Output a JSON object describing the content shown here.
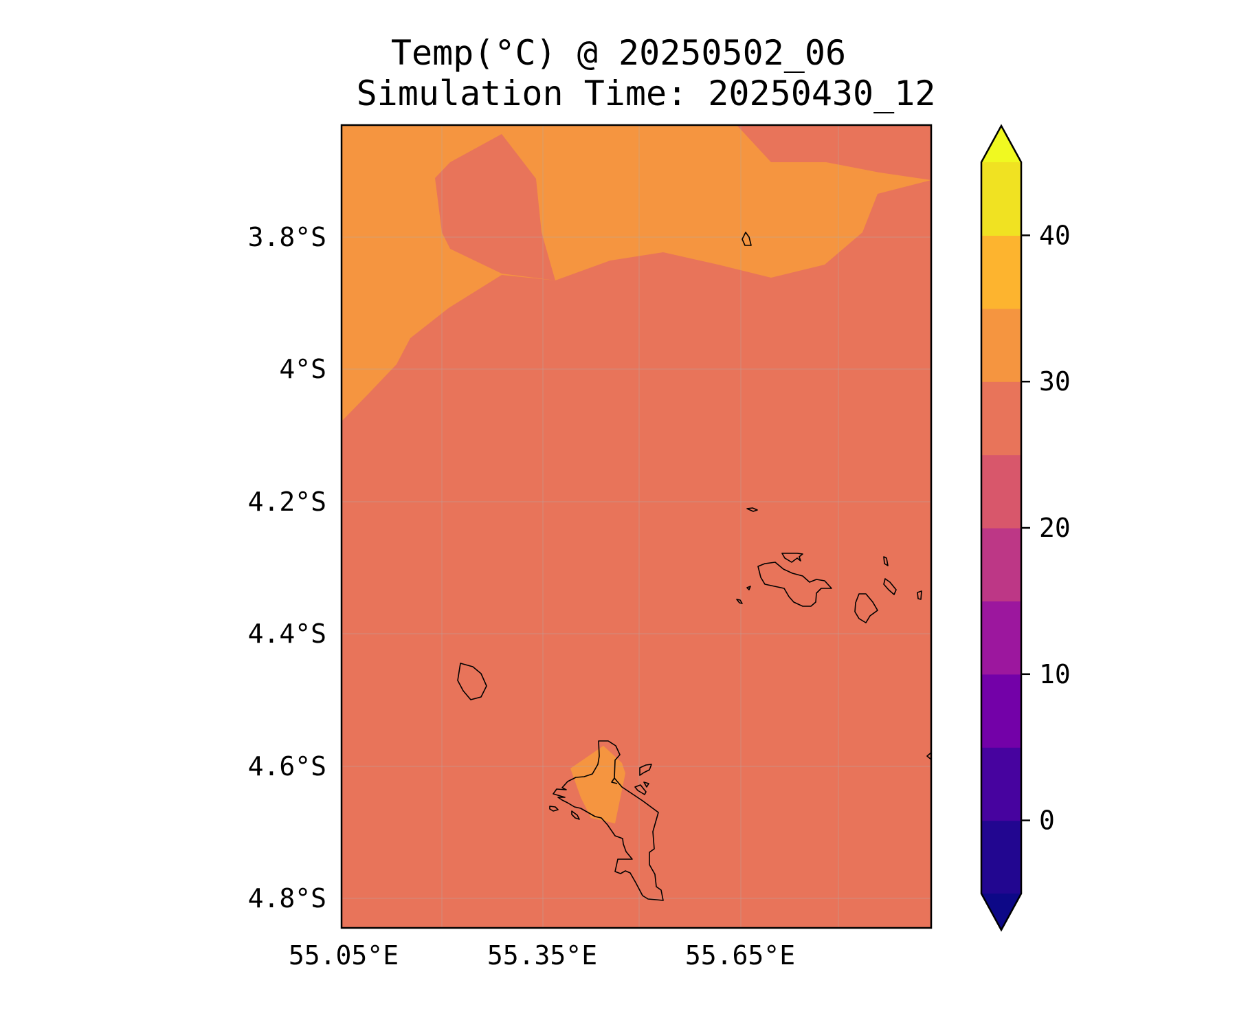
{
  "title": {
    "line1": "Temp(°C) @ 20250502_06",
    "line2": "Simulation Time: 20250430_12"
  },
  "map": {
    "lon_ticks": [
      "55.05°E",
      "55.35°E",
      "55.65°E"
    ],
    "lat_ticks": [
      "3.8°S",
      "4°S",
      "4.2°S",
      "4.4°S",
      "4.6°S",
      "4.8°S"
    ],
    "field_colors": {
      "band_25_30": "#e8745a",
      "band_30_35": "#f59540",
      "coastline": "#000000"
    }
  },
  "colorbar": {
    "tick_labels": [
      "40",
      "30",
      "20",
      "10",
      "0"
    ],
    "levels": [
      -5,
      0,
      5,
      10,
      15,
      20,
      25,
      30,
      35,
      40,
      45
    ],
    "under_color": "#0d0887",
    "over_color": "#f0f921",
    "band_colors": [
      "#220690",
      "#47039f",
      "#7301a8",
      "#9c179e",
      "#bd3786",
      "#d8576b",
      "#e8745a",
      "#f59540",
      "#fdb42f",
      "#f0e222"
    ]
  }
}
